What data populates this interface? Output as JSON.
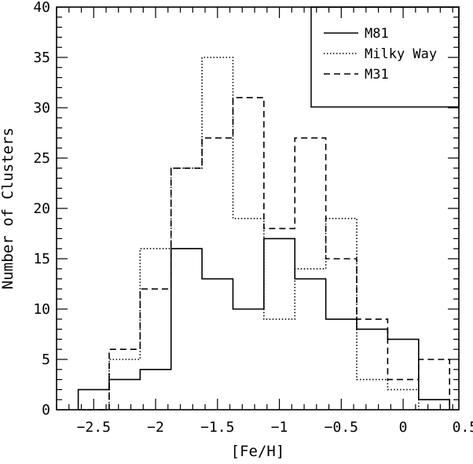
{
  "chart_data": {
    "type": "histogram",
    "title": "",
    "xlabel": "[Fe/H]",
    "ylabel": "Number of Clusters",
    "xlim": [
      -2.8,
      0.45
    ],
    "ylim": [
      0,
      40
    ],
    "x_ticks": [
      -2.5,
      -2,
      -1.5,
      -1,
      -0.5,
      0,
      0.5
    ],
    "x_tick_labels": [
      "−2.5",
      "−2",
      "−1.5",
      "−1",
      "−0.5",
      "0",
      "0.5"
    ],
    "y_ticks": [
      0,
      5,
      10,
      15,
      20,
      25,
      30,
      35,
      40
    ],
    "y_tick_labels": [
      "0",
      "5",
      "10",
      "15",
      "20",
      "25",
      "30",
      "35",
      "40"
    ],
    "bin_edges": [
      -2.625,
      -2.375,
      -2.125,
      -1.875,
      -1.625,
      -1.375,
      -1.125,
      -0.875,
      -0.625,
      -0.375,
      -0.125,
      0.125,
      0.375
    ],
    "series": [
      {
        "name": "M81",
        "line_style": "solid",
        "values": [
          2,
          3,
          4,
          16,
          13,
          10,
          17,
          13,
          9,
          8,
          7,
          1
        ]
      },
      {
        "name": "Milky Way",
        "line_style": "dotted",
        "values": [
          0,
          5,
          16,
          24,
          35,
          19,
          9,
          14,
          19,
          3,
          2,
          0
        ]
      },
      {
        "name": "M31",
        "line_style": "dashed",
        "values": [
          0,
          6,
          12,
          24,
          27,
          31,
          18,
          27,
          15,
          9,
          3,
          5
        ]
      }
    ],
    "legend": {
      "position": "top-right",
      "entries": [
        {
          "label": "M81",
          "line_style": "solid"
        },
        {
          "label": "Milky Way",
          "line_style": "dotted"
        },
        {
          "label": "M31",
          "line_style": "dashed"
        }
      ]
    }
  }
}
